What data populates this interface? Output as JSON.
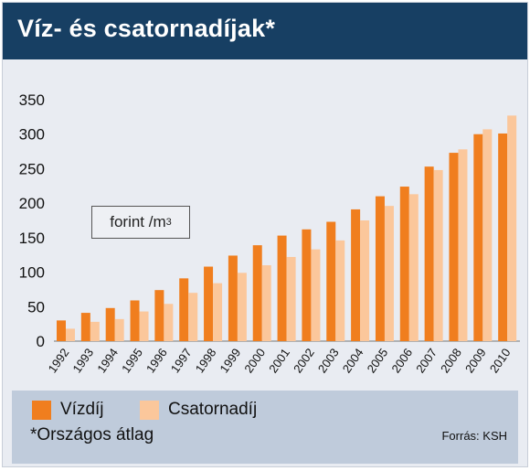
{
  "header": {
    "title": "Víz- és csatornadíjak*"
  },
  "unit": {
    "text": "forint /m",
    "sup": "3"
  },
  "legend": [
    {
      "label": "Vízdíj",
      "color": "#f07e1e"
    },
    {
      "label": "Csatornadíj",
      "color": "#fbc79b"
    }
  ],
  "footnote": "*Országos átlag",
  "source": "Forrás: KSH",
  "chart_data": {
    "type": "bar",
    "title": "Víz- és csatornadíjak*",
    "categories": [
      "1992",
      "1993",
      "1994",
      "1995",
      "1996",
      "1997",
      "1998",
      "1999",
      "2000",
      "2001",
      "2002",
      "2003",
      "2004",
      "2005",
      "2006",
      "2007",
      "2008",
      "2009",
      "2010"
    ],
    "series": [
      {
        "name": "Vízdíj",
        "color": "#f07e1e",
        "values": [
          30,
          41,
          48,
          59,
          74,
          91,
          108,
          124,
          139,
          153,
          162,
          173,
          191,
          210,
          224,
          253,
          273,
          300,
          301
        ]
      },
      {
        "name": "Csatornadíj",
        "color": "#fbc79b",
        "values": [
          18,
          28,
          32,
          43,
          54,
          70,
          84,
          99,
          110,
          122,
          133,
          146,
          175,
          196,
          213,
          248,
          278,
          307,
          327
        ]
      }
    ],
    "ylim": [
      0,
      350
    ],
    "yticks": [
      0,
      50,
      100,
      150,
      200,
      250,
      300,
      350
    ],
    "grid": false,
    "legend_position": "bottom"
  }
}
